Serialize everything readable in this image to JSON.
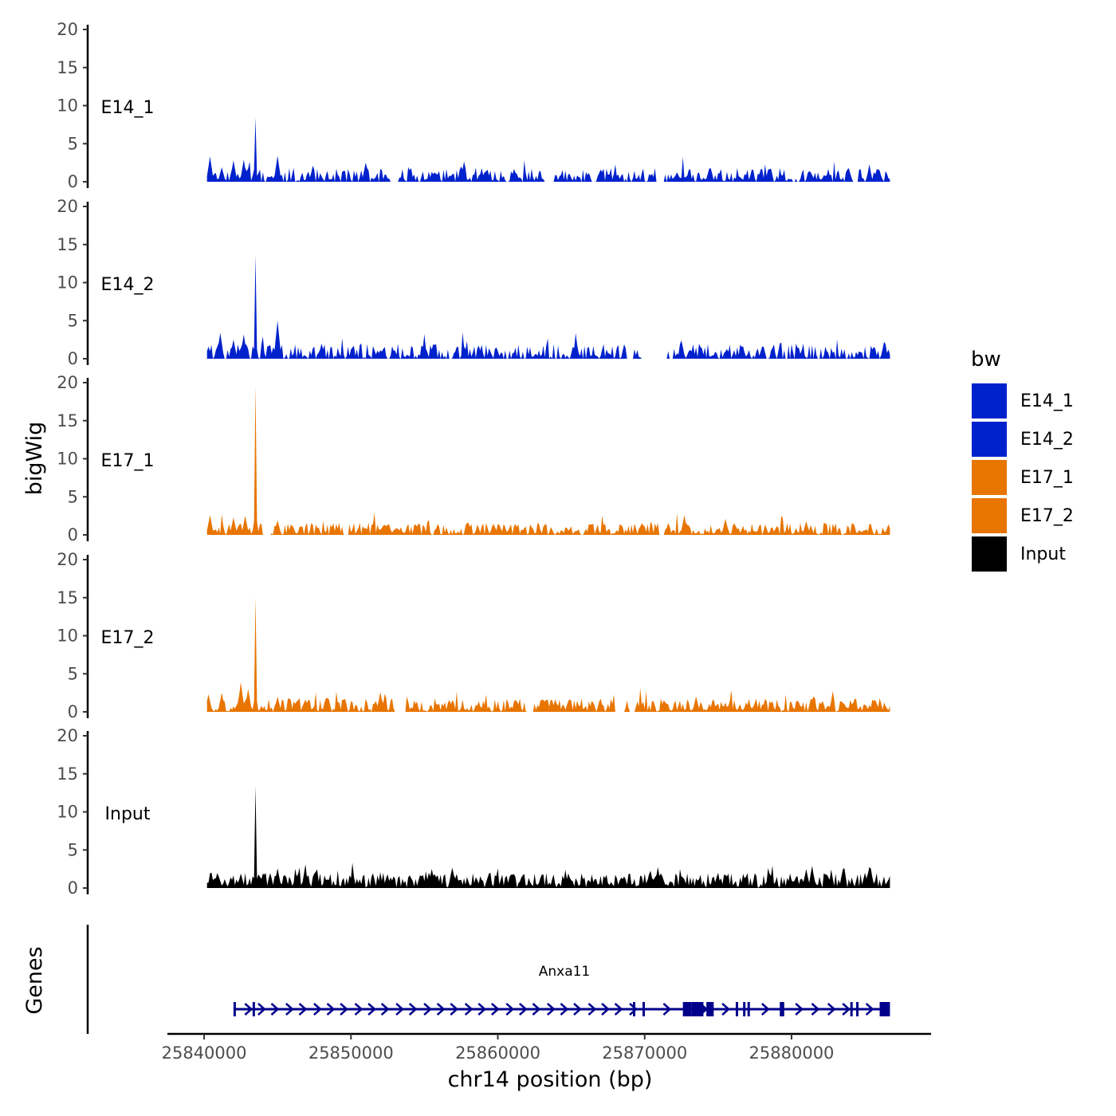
{
  "chart_data": {
    "type": "area",
    "ylabel": "bigWig",
    "genes_label": "Genes",
    "xlabel": "chr14 position (bp)",
    "xlim": [
      25837500,
      25889500
    ],
    "ylim": [
      0,
      20
    ],
    "y_ticks": [
      0,
      5,
      10,
      15,
      20
    ],
    "x_ticks": [
      25840000,
      25850000,
      25860000,
      25870000,
      25880000
    ],
    "x_tick_labels": [
      "25840000",
      "25850000",
      "25860000",
      "25870000",
      "25880000"
    ],
    "region": [
      25840200,
      25886700
    ],
    "legend": {
      "title": "bw",
      "items": [
        {
          "label": "E14_1",
          "color": "#0022cc"
        },
        {
          "label": "E14_2",
          "color": "#0022cc"
        },
        {
          "label": "E17_1",
          "color": "#e87500"
        },
        {
          "label": "E17_2",
          "color": "#e87500"
        },
        {
          "label": "Input",
          "color": "#000000"
        }
      ]
    },
    "series": [
      {
        "name": "E14_1",
        "color": "#0022cc",
        "base": 0.8,
        "noise": 1.0,
        "seed": 11,
        "peaks": [
          [
            25840400,
            3.3
          ],
          [
            25841200,
            1.9
          ],
          [
            25842000,
            2.8
          ],
          [
            25842700,
            2.9
          ],
          [
            25843500,
            8.4
          ],
          [
            25845000,
            3.4
          ],
          [
            25851000,
            2.5
          ],
          [
            25857500,
            2.0
          ],
          [
            25867000,
            1.6
          ],
          [
            25882500,
            1.4
          ],
          [
            25885800,
            1.6
          ]
        ],
        "gaps": [
          [
            25852700,
            25853200
          ],
          [
            25863200,
            25863800
          ],
          [
            25870800,
            25871300
          ],
          [
            25884200,
            25884500
          ]
        ]
      },
      {
        "name": "E14_2",
        "color": "#0022cc",
        "base": 0.9,
        "noise": 1.1,
        "seed": 23,
        "peaks": [
          [
            25840300,
            1.6
          ],
          [
            25841100,
            3.4
          ],
          [
            25842000,
            2.5
          ],
          [
            25842700,
            3.2
          ],
          [
            25843500,
            13.6
          ],
          [
            25845000,
            5.0
          ],
          [
            25848000,
            2.0
          ],
          [
            25872500,
            2.4
          ],
          [
            25878000,
            1.6
          ]
        ],
        "gaps": [
          [
            25868800,
            25869200
          ],
          [
            25869800,
            25871500
          ],
          [
            25871700,
            25871900
          ]
        ]
      },
      {
        "name": "E17_1",
        "color": "#e87500",
        "base": 0.8,
        "noise": 0.8,
        "seed": 37,
        "peaks": [
          [
            25840400,
            2.6
          ],
          [
            25842000,
            2.3
          ],
          [
            25842800,
            2.5
          ],
          [
            25843500,
            19.6
          ],
          [
            25845000,
            1.9
          ],
          [
            25872700,
            2.6
          ],
          [
            25875500,
            2.1
          ],
          [
            25881000,
            1.8
          ],
          [
            25886600,
            1.4
          ]
        ],
        "gaps": [
          [
            25844000,
            25844500
          ],
          [
            25849500,
            25849800
          ],
          [
            25871000,
            25871300
          ]
        ]
      },
      {
        "name": "E17_2",
        "color": "#e87500",
        "base": 0.9,
        "noise": 0.9,
        "seed": 53,
        "peaks": [
          [
            25840300,
            2.3
          ],
          [
            25841200,
            2.5
          ],
          [
            25842500,
            3.9
          ],
          [
            25843000,
            3.0
          ],
          [
            25843500,
            15.1
          ],
          [
            25845000,
            2.0
          ],
          [
            25852000,
            2.6
          ],
          [
            25873500,
            2.0
          ],
          [
            25881500,
            2.0
          ]
        ],
        "gaps": [
          [
            25853000,
            25853700
          ],
          [
            25862000,
            25862300
          ],
          [
            25868000,
            25868600
          ],
          [
            25869000,
            25869300
          ]
        ]
      },
      {
        "name": "Input",
        "color": "#000000",
        "base": 1.1,
        "noise": 0.9,
        "seed": 71,
        "peaks": [
          [
            25841000,
            1.5
          ],
          [
            25842500,
            1.9
          ],
          [
            25843500,
            13.4
          ],
          [
            25845000,
            2.6
          ],
          [
            25855500,
            2.5
          ],
          [
            25875000,
            1.6
          ],
          [
            25878500,
            1.9
          ],
          [
            25881000,
            2.5
          ],
          [
            25881400,
            2.9
          ],
          [
            25883500,
            2.5
          ],
          [
            25885000,
            2.0
          ]
        ],
        "gaps": []
      }
    ],
    "gene": {
      "name": "Anxa11",
      "color": "#00008b",
      "start": 25842000,
      "end": 25886700,
      "arrows": [
        25843000,
        25843900,
        25844800,
        25845800,
        25846700,
        25847700,
        25848600,
        25849500,
        25850500,
        25851400,
        25852300,
        25853300,
        25854200,
        25855200,
        25856100,
        25857000,
        25858000,
        25858900,
        25859800,
        25860800,
        25861700,
        25862600,
        25863600,
        25864500,
        25865400,
        25866400,
        25867300,
        25868200,
        25869200,
        25871500,
        25874000,
        25875500,
        25878200,
        25880500,
        25881600,
        25882700,
        25883700,
        25885300
      ],
      "exons": [
        [
          25842000,
          25842100
        ],
        [
          25843300,
          25843360
        ],
        [
          25869200,
          25869280
        ],
        [
          25869850,
          25869930
        ],
        [
          25872600,
          25873200
        ],
        [
          25873200,
          25874000
        ],
        [
          25874200,
          25874700
        ],
        [
          25876200,
          25876300
        ],
        [
          25876700,
          25876800
        ],
        [
          25877000,
          25877100
        ],
        [
          25879200,
          25879500
        ],
        [
          25884000,
          25884100
        ],
        [
          25884400,
          25884500
        ],
        [
          25886000,
          25886700
        ]
      ]
    }
  }
}
